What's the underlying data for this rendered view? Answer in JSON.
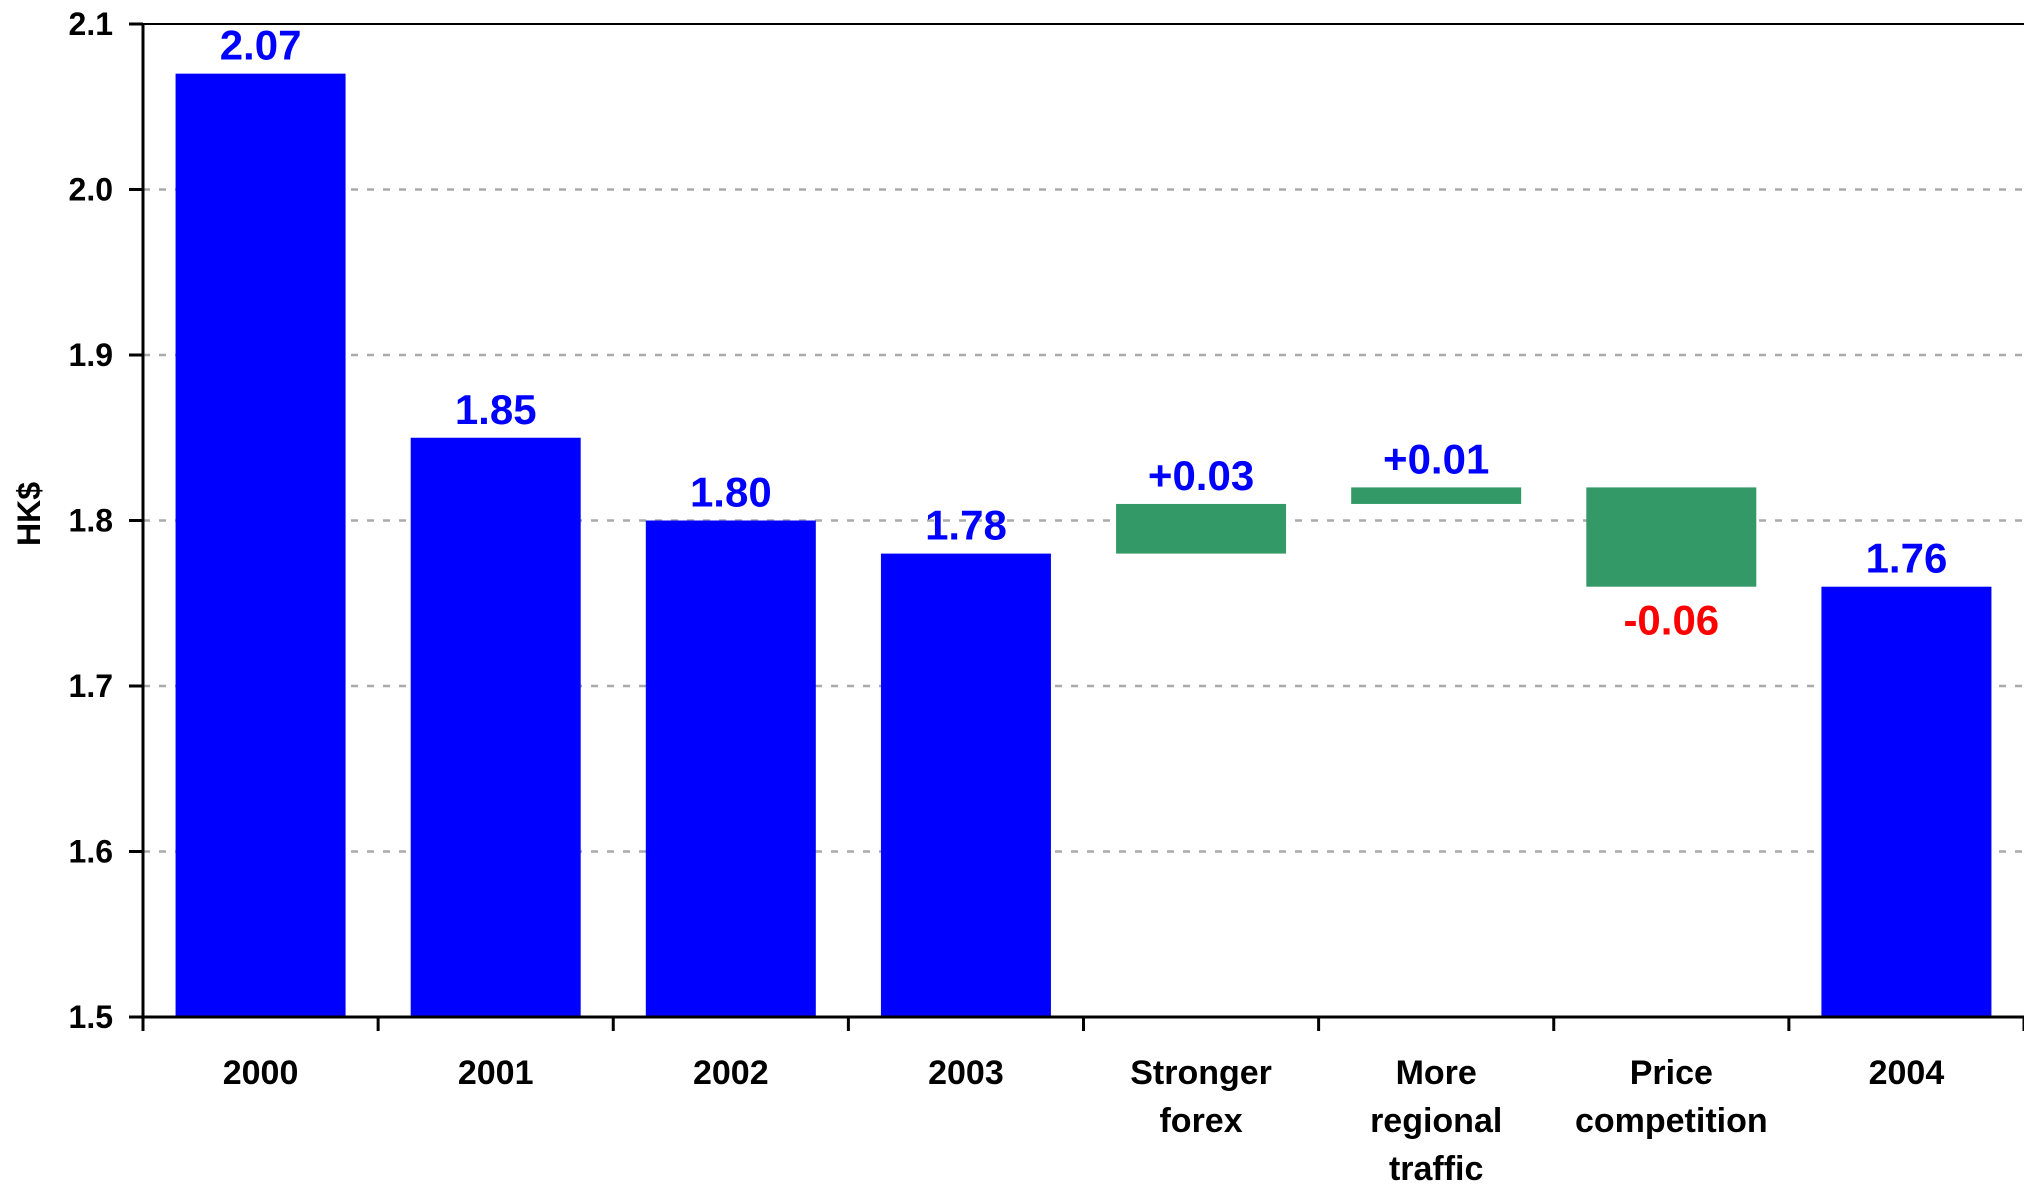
{
  "chart_data": {
    "type": "bar",
    "subtype": "waterfall",
    "ylabel": "HK$",
    "xlabel": "",
    "ylim": [
      1.5,
      2.1
    ],
    "yticks": [
      1.5,
      1.6,
      1.7,
      1.8,
      1.9,
      2.0,
      2.1
    ],
    "grid": true,
    "colors": {
      "total": "#0000ff",
      "delta": "#339966",
      "negative_label": "#ff0000",
      "total_label": "#0000ff"
    },
    "categories": [
      [
        "2000"
      ],
      [
        "2001"
      ],
      [
        "2002"
      ],
      [
        "2003"
      ],
      [
        "Stronger",
        "forex"
      ],
      [
        "More",
        "regional",
        "traffic"
      ],
      [
        "Price",
        "competition"
      ],
      [
        "2004"
      ]
    ],
    "bars": [
      {
        "kind": "total",
        "start": 1.5,
        "end": 2.07,
        "label": "2.07"
      },
      {
        "kind": "total",
        "start": 1.5,
        "end": 1.85,
        "label": "1.85"
      },
      {
        "kind": "total",
        "start": 1.5,
        "end": 1.8,
        "label": "1.80"
      },
      {
        "kind": "total",
        "start": 1.5,
        "end": 1.78,
        "label": "1.78"
      },
      {
        "kind": "delta",
        "start": 1.78,
        "end": 1.81,
        "label": "+0.03"
      },
      {
        "kind": "delta",
        "start": 1.81,
        "end": 1.82,
        "label": "+0.01"
      },
      {
        "kind": "delta",
        "start": 1.82,
        "end": 1.76,
        "label": "-0.06"
      },
      {
        "kind": "total",
        "start": 1.5,
        "end": 1.76,
        "label": "1.76"
      }
    ]
  }
}
